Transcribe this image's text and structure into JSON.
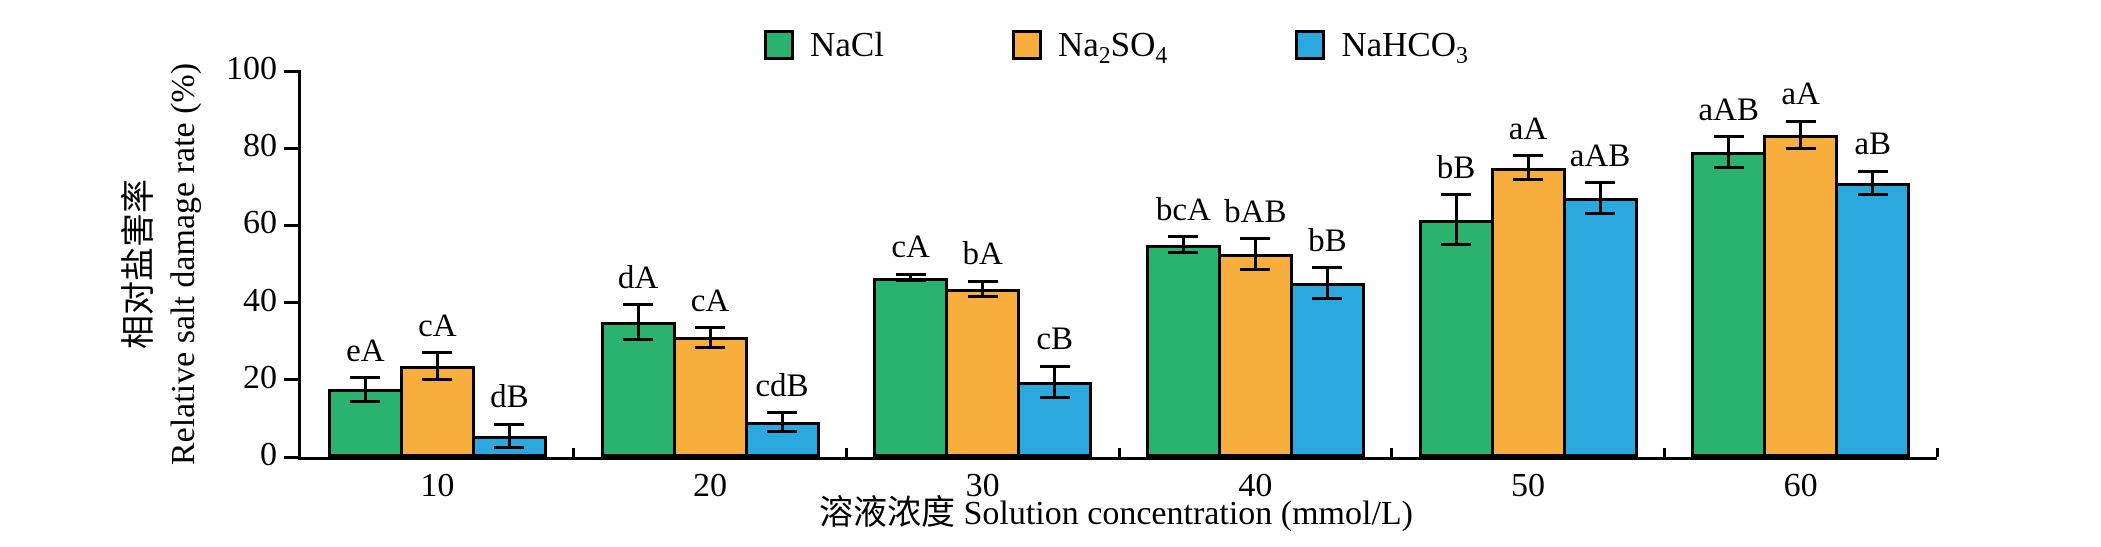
{
  "chart_data": {
    "type": "bar",
    "title": "",
    "xlabel": "溶液浓度 Solution concentration (mmol/L)",
    "ylabel_zh": "相对盐害率",
    "ylabel_en": "Relative salt damage rate (%)",
    "ylim": [
      0,
      100
    ],
    "yticks": [
      0,
      20,
      40,
      60,
      80,
      100
    ],
    "categories": [
      "10",
      "20",
      "30",
      "40",
      "50",
      "60"
    ],
    "grid": false,
    "legend_position": "top-center",
    "error_bars": true,
    "series": [
      {
        "name": "NaCl",
        "label_segments": [
          {
            "text": "NaCl",
            "sub": false
          }
        ],
        "color": "#2ab36e",
        "values": [
          17.5,
          35,
          46.5,
          55,
          61.5,
          79
        ],
        "errors": [
          3,
          4.5,
          0.8,
          2,
          6.5,
          4
        ],
        "sig_labels": [
          "eA",
          "dA",
          "cA",
          "bcA",
          "bB",
          "aAB"
        ]
      },
      {
        "name": "Na2SO4",
        "label_segments": [
          {
            "text": "Na",
            "sub": false
          },
          {
            "text": "2",
            "sub": true
          },
          {
            "text": "SO",
            "sub": false
          },
          {
            "text": "4",
            "sub": true
          }
        ],
        "color": "#f8ae3d",
        "values": [
          23.5,
          31,
          43.5,
          52.5,
          75,
          83.5
        ],
        "errors": [
          3.5,
          2.5,
          2,
          4,
          3,
          3.5
        ],
        "sig_labels": [
          "cA",
          "cA",
          "bA",
          "bAB",
          "aA",
          "aA"
        ]
      },
      {
        "name": "NaHCO3",
        "label_segments": [
          {
            "text": "NaHCO",
            "sub": false
          },
          {
            "text": "3",
            "sub": true
          }
        ],
        "color": "#2ba9df",
        "values": [
          5.5,
          9,
          19.5,
          45,
          67,
          71
        ],
        "errors": [
          3,
          2.5,
          4,
          4,
          4,
          3
        ],
        "sig_labels": [
          "dB",
          "cdB",
          "cB",
          "bB",
          "aAB",
          "aB"
        ]
      }
    ]
  }
}
